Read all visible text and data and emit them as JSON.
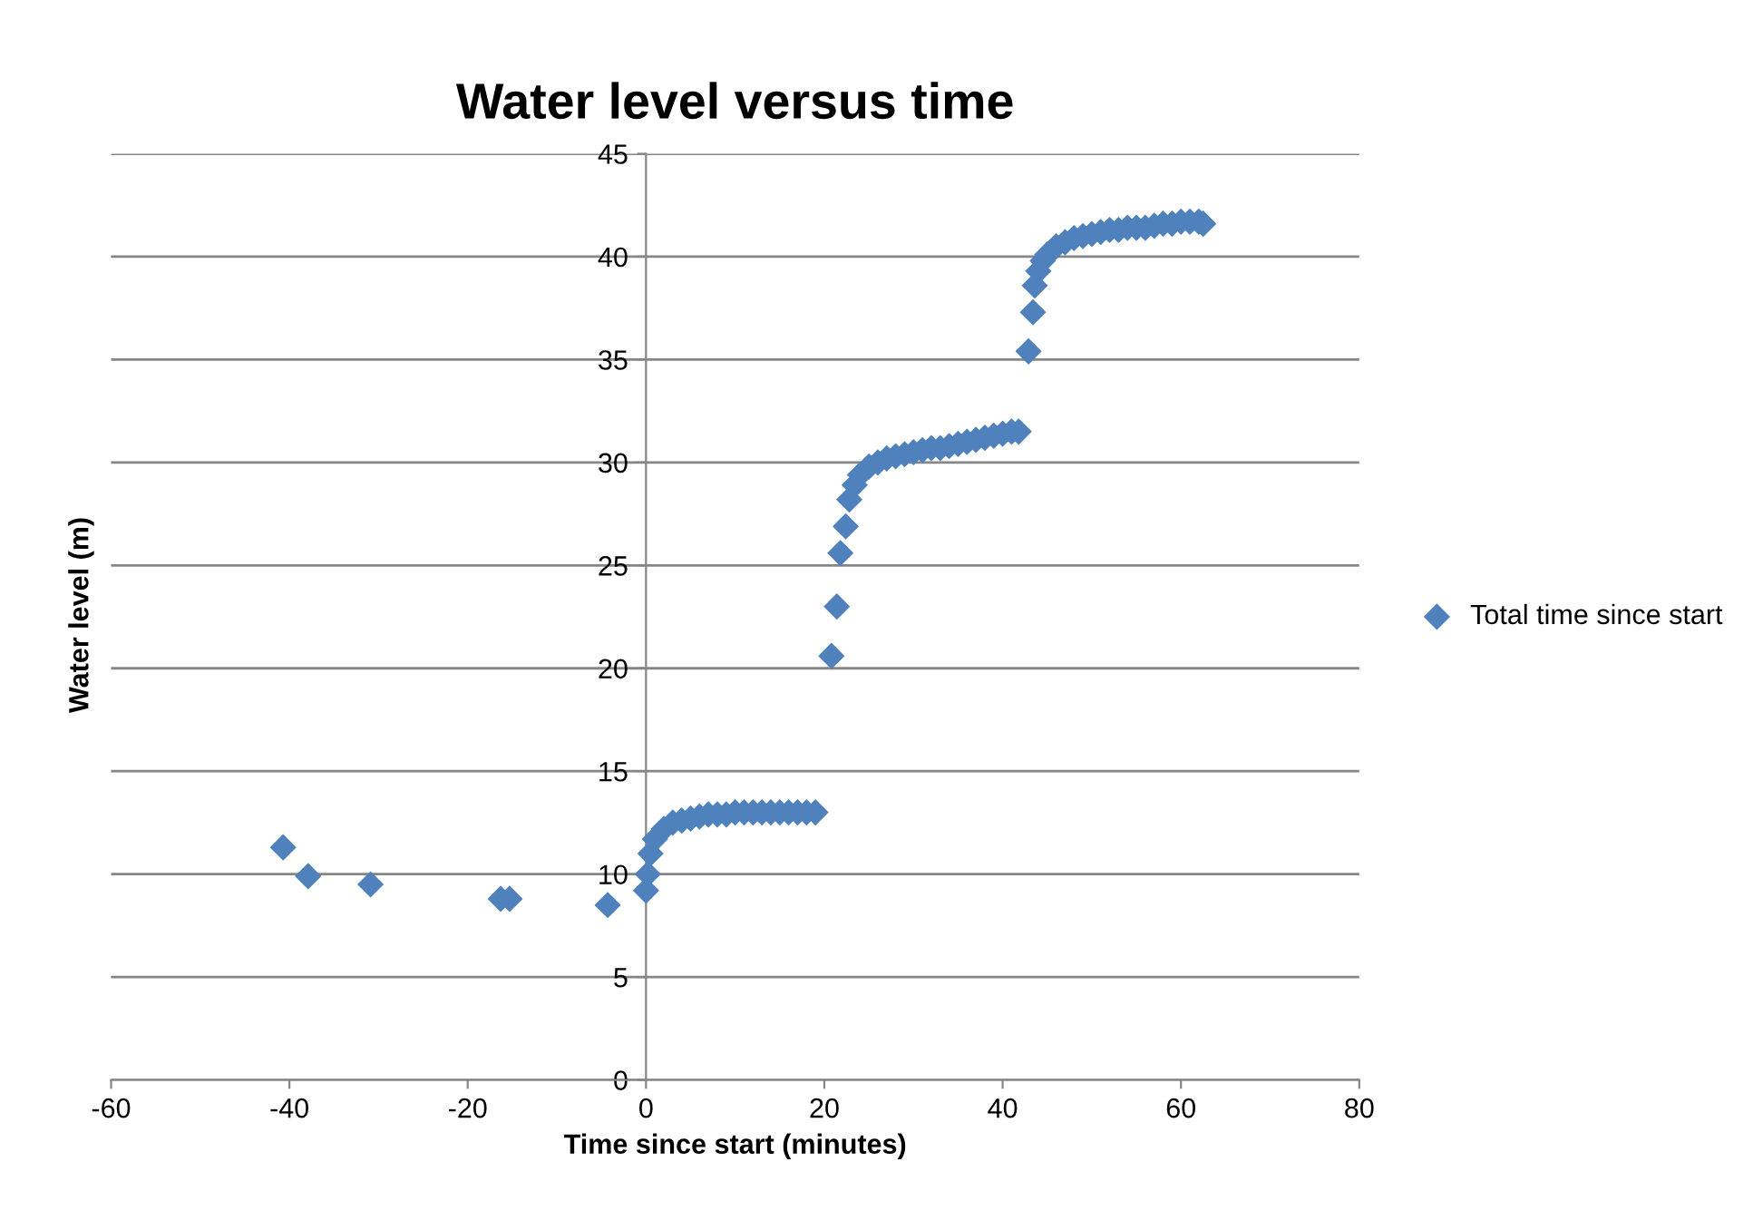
{
  "chart_data": {
    "type": "scatter",
    "title": "Water level versus time",
    "xlabel": "Time since start (minutes)",
    "ylabel": "Water level (m)",
    "xlim": [
      -60,
      80
    ],
    "xticks": [
      -60,
      -40,
      -20,
      0,
      20,
      40,
      60,
      80
    ],
    "ylim": [
      0,
      45
    ],
    "yticks": [
      0,
      5,
      10,
      15,
      20,
      25,
      30,
      35,
      40,
      45
    ],
    "grid": "y",
    "legend": "right",
    "marker": "diamond",
    "series": [
      {
        "name": "Total time since start",
        "color": "#4f81bd",
        "x": [
          -40.7,
          -37.9,
          -30.9,
          -16.3,
          -15.3,
          -4.3,
          0,
          0.2,
          0.5,
          1,
          2,
          3,
          4,
          5,
          6,
          7,
          8,
          9,
          10,
          11,
          12,
          13,
          14,
          15,
          16,
          17,
          18,
          19,
          20.8,
          21.4,
          21.8,
          22.4,
          22.8,
          23.4,
          24,
          25,
          26,
          27,
          28,
          29,
          30,
          31,
          32,
          33,
          34,
          35,
          36,
          37,
          38,
          39,
          40,
          41,
          41.8,
          42.9,
          43.4,
          43.6,
          44,
          44.5,
          45,
          46,
          47,
          48,
          49,
          50,
          51,
          52,
          53,
          54,
          55,
          56,
          57,
          58,
          59,
          60,
          61,
          62,
          62.5
        ],
        "values": [
          11.3,
          9.9,
          9.5,
          8.8,
          8.8,
          8.5,
          9.2,
          10.0,
          11.0,
          11.7,
          12.2,
          12.5,
          12.6,
          12.7,
          12.8,
          12.9,
          12.9,
          12.9,
          13.0,
          13.0,
          13.0,
          13.0,
          13.0,
          13.0,
          13.0,
          13.0,
          13.0,
          13.0,
          20.6,
          23.0,
          25.6,
          26.9,
          28.2,
          28.9,
          29.4,
          29.8,
          30.0,
          30.2,
          30.3,
          30.4,
          30.5,
          30.6,
          30.7,
          30.7,
          30.8,
          30.9,
          31.0,
          31.1,
          31.2,
          31.3,
          31.4,
          31.5,
          31.5,
          35.4,
          37.3,
          38.6,
          39.3,
          39.8,
          40.1,
          40.5,
          40.7,
          40.9,
          41.0,
          41.1,
          41.2,
          41.3,
          41.3,
          41.4,
          41.4,
          41.4,
          41.5,
          41.6,
          41.6,
          41.7,
          41.7,
          41.7,
          41.6
        ]
      }
    ]
  }
}
